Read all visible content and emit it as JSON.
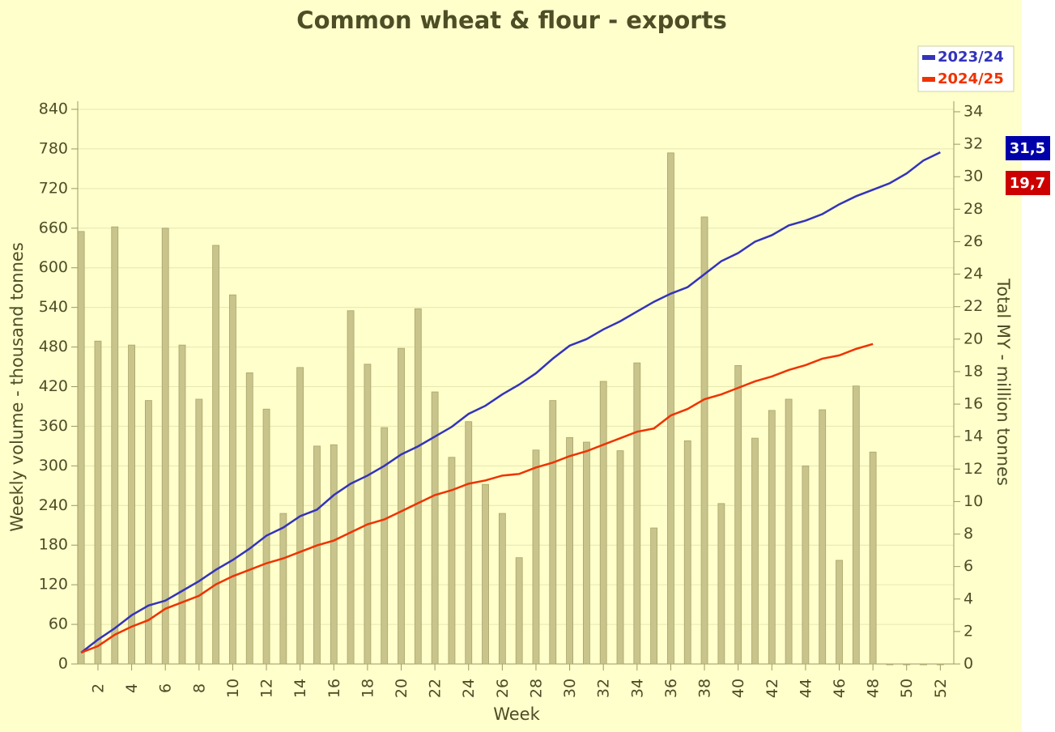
{
  "chart_data": {
    "type": "bar-line",
    "title": "Common wheat & flour - exports",
    "x_label": "Week",
    "y_label": "Weekly volume - thousand tonnes",
    "y2_label": "Total MY - million tonnes",
    "x": [
      1,
      2,
      3,
      4,
      5,
      6,
      7,
      8,
      9,
      10,
      11,
      12,
      13,
      14,
      15,
      16,
      17,
      18,
      19,
      20,
      21,
      22,
      23,
      24,
      25,
      26,
      27,
      28,
      29,
      30,
      31,
      32,
      33,
      34,
      35,
      36,
      37,
      38,
      39,
      40,
      41,
      42,
      43,
      44,
      45,
      46,
      47,
      48,
      49,
      50,
      51,
      52
    ],
    "xlim": [
      0.8,
      52.8
    ],
    "xticks": [
      2,
      4,
      6,
      8,
      10,
      12,
      14,
      16,
      18,
      20,
      22,
      24,
      26,
      28,
      30,
      32,
      34,
      36,
      38,
      40,
      42,
      44,
      46,
      48,
      50,
      52
    ],
    "ylim": [
      0,
      840
    ],
    "yticks": [
      0,
      60,
      120,
      180,
      240,
      300,
      360,
      420,
      480,
      540,
      600,
      660,
      720,
      780,
      840
    ],
    "y2lim": [
      0,
      34.15
    ],
    "y2ticks": [
      0,
      2,
      4,
      6,
      8,
      10,
      12,
      14,
      16,
      18,
      20,
      22,
      24,
      26,
      28,
      30,
      32,
      34
    ],
    "grid": true,
    "legend": "top-right",
    "series": [
      {
        "type": "bar",
        "color": "#c8c48c",
        "values": [
          655,
          489,
          662,
          483,
          399,
          660,
          483,
          401,
          634,
          559,
          441,
          386,
          228,
          449,
          330,
          332,
          535,
          454,
          358,
          478,
          538,
          412,
          313,
          367,
          272,
          228,
          161,
          324,
          399,
          343,
          336,
          428,
          323,
          456,
          206,
          774,
          338,
          677,
          243,
          452,
          342,
          384,
          401,
          300,
          385,
          157,
          421,
          321,
          0,
          0,
          0,
          0
        ]
      },
      {
        "type": "line",
        "axis": "y2",
        "name": "2023/24",
        "color": "#3333bb",
        "end_label": "31,5",
        "badge_color": "#0000aa",
        "values": [
          0.7,
          1.5,
          2.2,
          3.0,
          3.6,
          3.9,
          4.5,
          5.1,
          5.8,
          6.4,
          7.1,
          7.9,
          8.4,
          9.1,
          9.5,
          10.4,
          11.1,
          11.6,
          12.2,
          12.9,
          13.4,
          14.0,
          14.6,
          15.4,
          15.9,
          16.6,
          17.2,
          17.9,
          18.8,
          19.6,
          20.0,
          20.6,
          21.1,
          21.7,
          22.3,
          22.8,
          23.2,
          24.0,
          24.8,
          25.3,
          26.0,
          26.4,
          27.0,
          27.3,
          27.7,
          28.3,
          28.8,
          29.2,
          29.6,
          30.2,
          31.0,
          31.5
        ]
      },
      {
        "type": "line",
        "axis": "y2",
        "name": "2024/25",
        "color": "#ee3300",
        "end_label": "19,7",
        "badge_color": "#cc0000",
        "values": [
          0.7,
          1.1,
          1.8,
          2.3,
          2.7,
          3.4,
          3.8,
          4.2,
          4.9,
          5.4,
          5.8,
          6.2,
          6.5,
          6.9,
          7.3,
          7.6,
          8.1,
          8.6,
          8.9,
          9.4,
          9.9,
          10.4,
          10.7,
          11.1,
          11.3,
          11.6,
          11.7,
          12.1,
          12.4,
          12.8,
          13.1,
          13.5,
          13.9,
          14.3,
          14.5,
          15.3,
          15.7,
          16.3,
          16.6,
          17.0,
          17.4,
          17.7,
          18.1,
          18.4,
          18.8,
          19.0,
          19.4,
          19.7,
          null,
          null,
          null,
          null
        ]
      }
    ]
  }
}
